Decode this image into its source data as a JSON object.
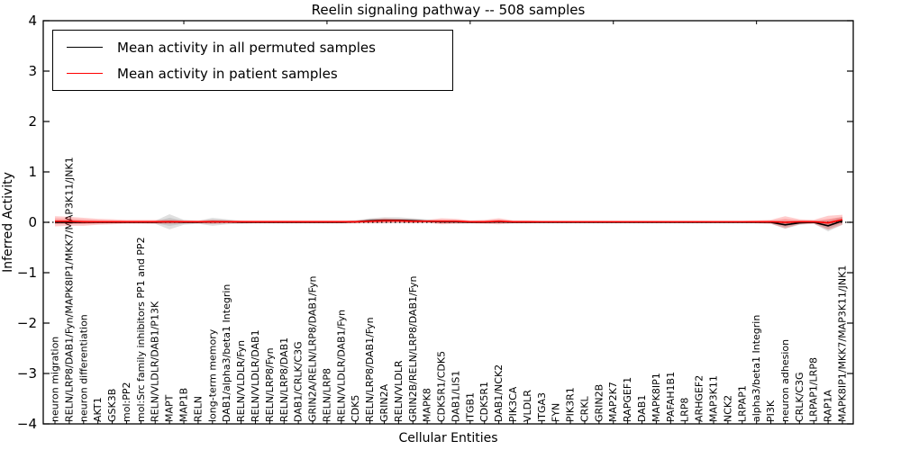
{
  "figure": {
    "title": "Reelin signaling pathway -- 508 samples",
    "xlabel": "Cellular Entities",
    "ylabel": "Inferred Activity"
  },
  "legend": {
    "entries": [
      {
        "label": "Mean activity in all permuted samples",
        "color": "#000000"
      },
      {
        "label": "Mean activity in patient samples",
        "color": "#ff0000"
      }
    ],
    "position": "upper left"
  },
  "chart_data": {
    "type": "line",
    "title": "Reelin signaling pathway -- 508 samples",
    "xlabel": "Cellular Entities",
    "ylabel": "Inferred Activity",
    "ylim": [
      -4,
      4
    ],
    "ytick_labels": [
      "4",
      "3",
      "2",
      "1",
      "0",
      "−1",
      "−2",
      "−3",
      "−4"
    ],
    "yticks": [
      4,
      3,
      2,
      1,
      0,
      -1,
      -2,
      -3,
      -4
    ],
    "grid": false,
    "zero_reference_line": true,
    "legend_position": "upper left",
    "categories": [
      "neuron migration",
      "RELN/LRP8/DAB1/Fyn/MAPK8IP1/MKK7/MAP3K11/JNK1",
      "neuron differentiation",
      "AKT1",
      "GSK3B",
      "mol:PP2",
      "mol:Src family inhibitors PP1 and PP2",
      "RELN/VLDLR/DAB1/P13K",
      "MAPT",
      "MAP1B",
      "RELN",
      "long-term memory",
      "DAB1/alpha3/beta1 Integrin",
      "RELN/VLDLR/Fyn",
      "RELN/VLDLR/DAB1",
      "RELN/LRP8/Fyn",
      "RELN/LRP8/DAB1",
      "DAB1/CRLK/C3G",
      "GRIN2A/RELN/LRP8/DAB1/Fyn",
      "RELN/LRP8",
      "RELN/VLDLR/DAB1/Fyn",
      "CDK5",
      "RELN/LRP8/DAB1/Fyn",
      "GRIN2A",
      "RELN/VLDLR",
      "GRIN2B/RELN/LRP8/DAB1/Fyn",
      "MAPK8",
      "CDK5R1/CDK5",
      "DAB1/LIS1",
      "ITGB1",
      "CDK5R1",
      "DAB1/NCK2",
      "PIK3CA",
      "VLDLR",
      "ITGA3",
      "FYN",
      "PIK3R1",
      "CRKL",
      "GRIN2B",
      "MAP2K7",
      "RAPGEF1",
      "DAB1",
      "MAPK8IP1",
      "PAFAH1B1",
      "LRP8",
      "ARHGEF2",
      "MAP3K11",
      "NCK2",
      "LRPAP1",
      "alpha3/beta1 Integrin",
      "PI3K",
      "neuron adhesion",
      "CRLK/C3G",
      "LRPAP1/LRP8",
      "RAP1A",
      "MAPK8IP1/MKK7/MAP3K11/JNK1"
    ],
    "series": [
      {
        "name": "Mean activity in all permuted samples",
        "color": "#000000",
        "band_color": "#999999",
        "values": [
          0,
          0,
          0,
          0,
          0,
          0,
          0,
          0,
          0.01,
          0,
          0,
          0.01,
          0.01,
          0,
          0,
          0,
          0,
          0,
          0,
          0,
          0,
          0.01,
          0.03,
          0.04,
          0.04,
          0.03,
          0.02,
          0.01,
          0.01,
          0,
          0,
          0.01,
          0,
          0,
          0,
          0,
          0,
          0,
          0,
          0,
          0,
          0,
          0,
          0,
          0,
          0,
          0,
          0,
          0,
          0,
          0,
          -0.05,
          -0.01,
          0,
          -0.07,
          0.03
        ],
        "band_halfwidth": [
          0.03,
          0.03,
          0.03,
          0.02,
          0.02,
          0.02,
          0.02,
          0.03,
          0.15,
          0.05,
          0.03,
          0.08,
          0.05,
          0.03,
          0.02,
          0.02,
          0.02,
          0.02,
          0.02,
          0.02,
          0.02,
          0.03,
          0.05,
          0.06,
          0.06,
          0.05,
          0.04,
          0.03,
          0.03,
          0.02,
          0.02,
          0.03,
          0.02,
          0.02,
          0.02,
          0.02,
          0.02,
          0.02,
          0.02,
          0.02,
          0.02,
          0.02,
          0.02,
          0.02,
          0.02,
          0.02,
          0.02,
          0.02,
          0.02,
          0.02,
          0.03,
          0.08,
          0.04,
          0.03,
          0.11,
          0.08
        ]
      },
      {
        "name": "Mean activity in patient samples",
        "color": "#ff0000",
        "band_color": "#ff0000",
        "values": [
          0.02,
          0.02,
          0.01,
          0.01,
          0.01,
          0.01,
          0.01,
          0.01,
          0.01,
          0.01,
          0.01,
          0.01,
          0.01,
          0.01,
          0.01,
          0.01,
          0.01,
          0.01,
          0.01,
          0.01,
          0.01,
          0.01,
          0.02,
          0.03,
          0.03,
          0.02,
          0.02,
          0.02,
          0.02,
          0.01,
          0.01,
          0.02,
          0.01,
          0.01,
          0.01,
          0.01,
          0.01,
          0.01,
          0.01,
          0.01,
          0.01,
          0.01,
          0.01,
          0.01,
          0.01,
          0.01,
          0.01,
          0.01,
          0.01,
          0.01,
          0.01,
          0,
          0.01,
          0.01,
          -0.01,
          0.05
        ],
        "band_halfwidth": [
          0.1,
          0.09,
          0.08,
          0.06,
          0.05,
          0.04,
          0.04,
          0.04,
          0.04,
          0.03,
          0.03,
          0.04,
          0.03,
          0.03,
          0.03,
          0.03,
          0.03,
          0.03,
          0.03,
          0.03,
          0.03,
          0.03,
          0.04,
          0.05,
          0.04,
          0.04,
          0.03,
          0.06,
          0.05,
          0.03,
          0.04,
          0.06,
          0.03,
          0.03,
          0.02,
          0.02,
          0.02,
          0.02,
          0.02,
          0.02,
          0.02,
          0.02,
          0.02,
          0.02,
          0.02,
          0.02,
          0.02,
          0.02,
          0.02,
          0.03,
          0.04,
          0.12,
          0.05,
          0.04,
          0.14,
          0.1
        ]
      }
    ]
  }
}
